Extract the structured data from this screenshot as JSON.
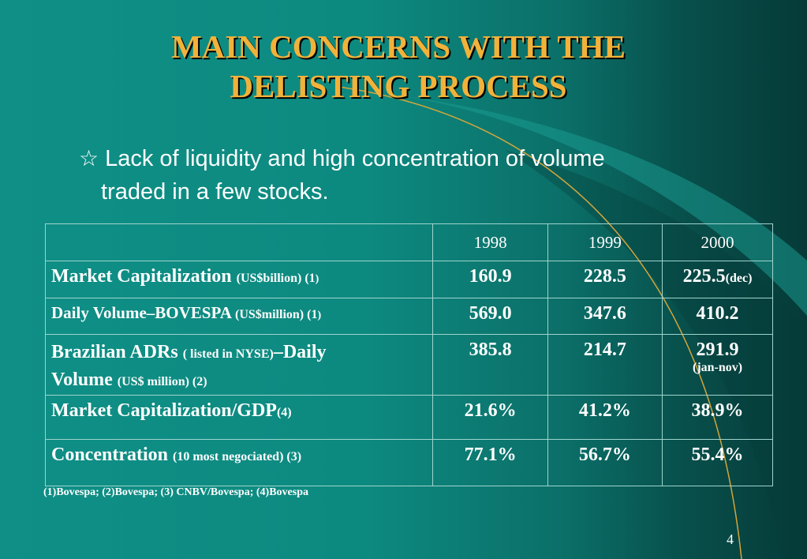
{
  "title": {
    "line1": "MAIN CONCERNS WITH THE",
    "line2": "DELISTING PROCESS"
  },
  "bullet": {
    "icon": "star-outline-icon",
    "line1": "Lack of liquidity and high concentration of volume",
    "line2": "traded in a few stocks."
  },
  "table": {
    "headers": [
      "",
      "1998",
      "1999",
      "2000"
    ],
    "rows": [
      {
        "label_main": "Market Capitalization ",
        "label_small": "(US$billion) (1",
        "label_tiny": ")",
        "v1998": "160.9",
        "v1999": "228.5",
        "v2000": "225.5",
        "v2000_note": "(dec)"
      },
      {
        "label_main": "Daily Volume–BOVESPA ",
        "label_small": "(US$million) (1",
        "label_tiny": ")",
        "v1998": "569.0",
        "v1999": "347.6",
        "v2000": "410.2"
      },
      {
        "label_main": "Brazilian ADRs ",
        "label_small": "( listed in NYSE)",
        "label_main2": "–Daily",
        "label_main3": "Volume ",
        "label_small2": "(US$ million) (2)",
        "v1998": "385.8",
        "v1999": "214.7",
        "v2000": "291.9",
        "v2000_note": "(jan-nov)"
      },
      {
        "label_main": "Market Capitalization/GDP",
        "label_small": "(4)",
        "v1998": "21.6%",
        "v1999": "41.2%",
        "v2000": "38.9%"
      },
      {
        "label_main": "Concentration ",
        "label_small": "(10 most negociated) (3)",
        "v1998": "77.1%",
        "v1999": "56.7%",
        "v2000": "55.4%"
      }
    ]
  },
  "footnote": "(1)Bovespa; (2)Bovespa; (3) CNBV/Bovespa; (4)Bovespa",
  "page_number": "4",
  "colors": {
    "title": "#f2b23a",
    "background": "#0d8a80",
    "accent_curve": "#d4a53a",
    "text": "#ffffff"
  }
}
